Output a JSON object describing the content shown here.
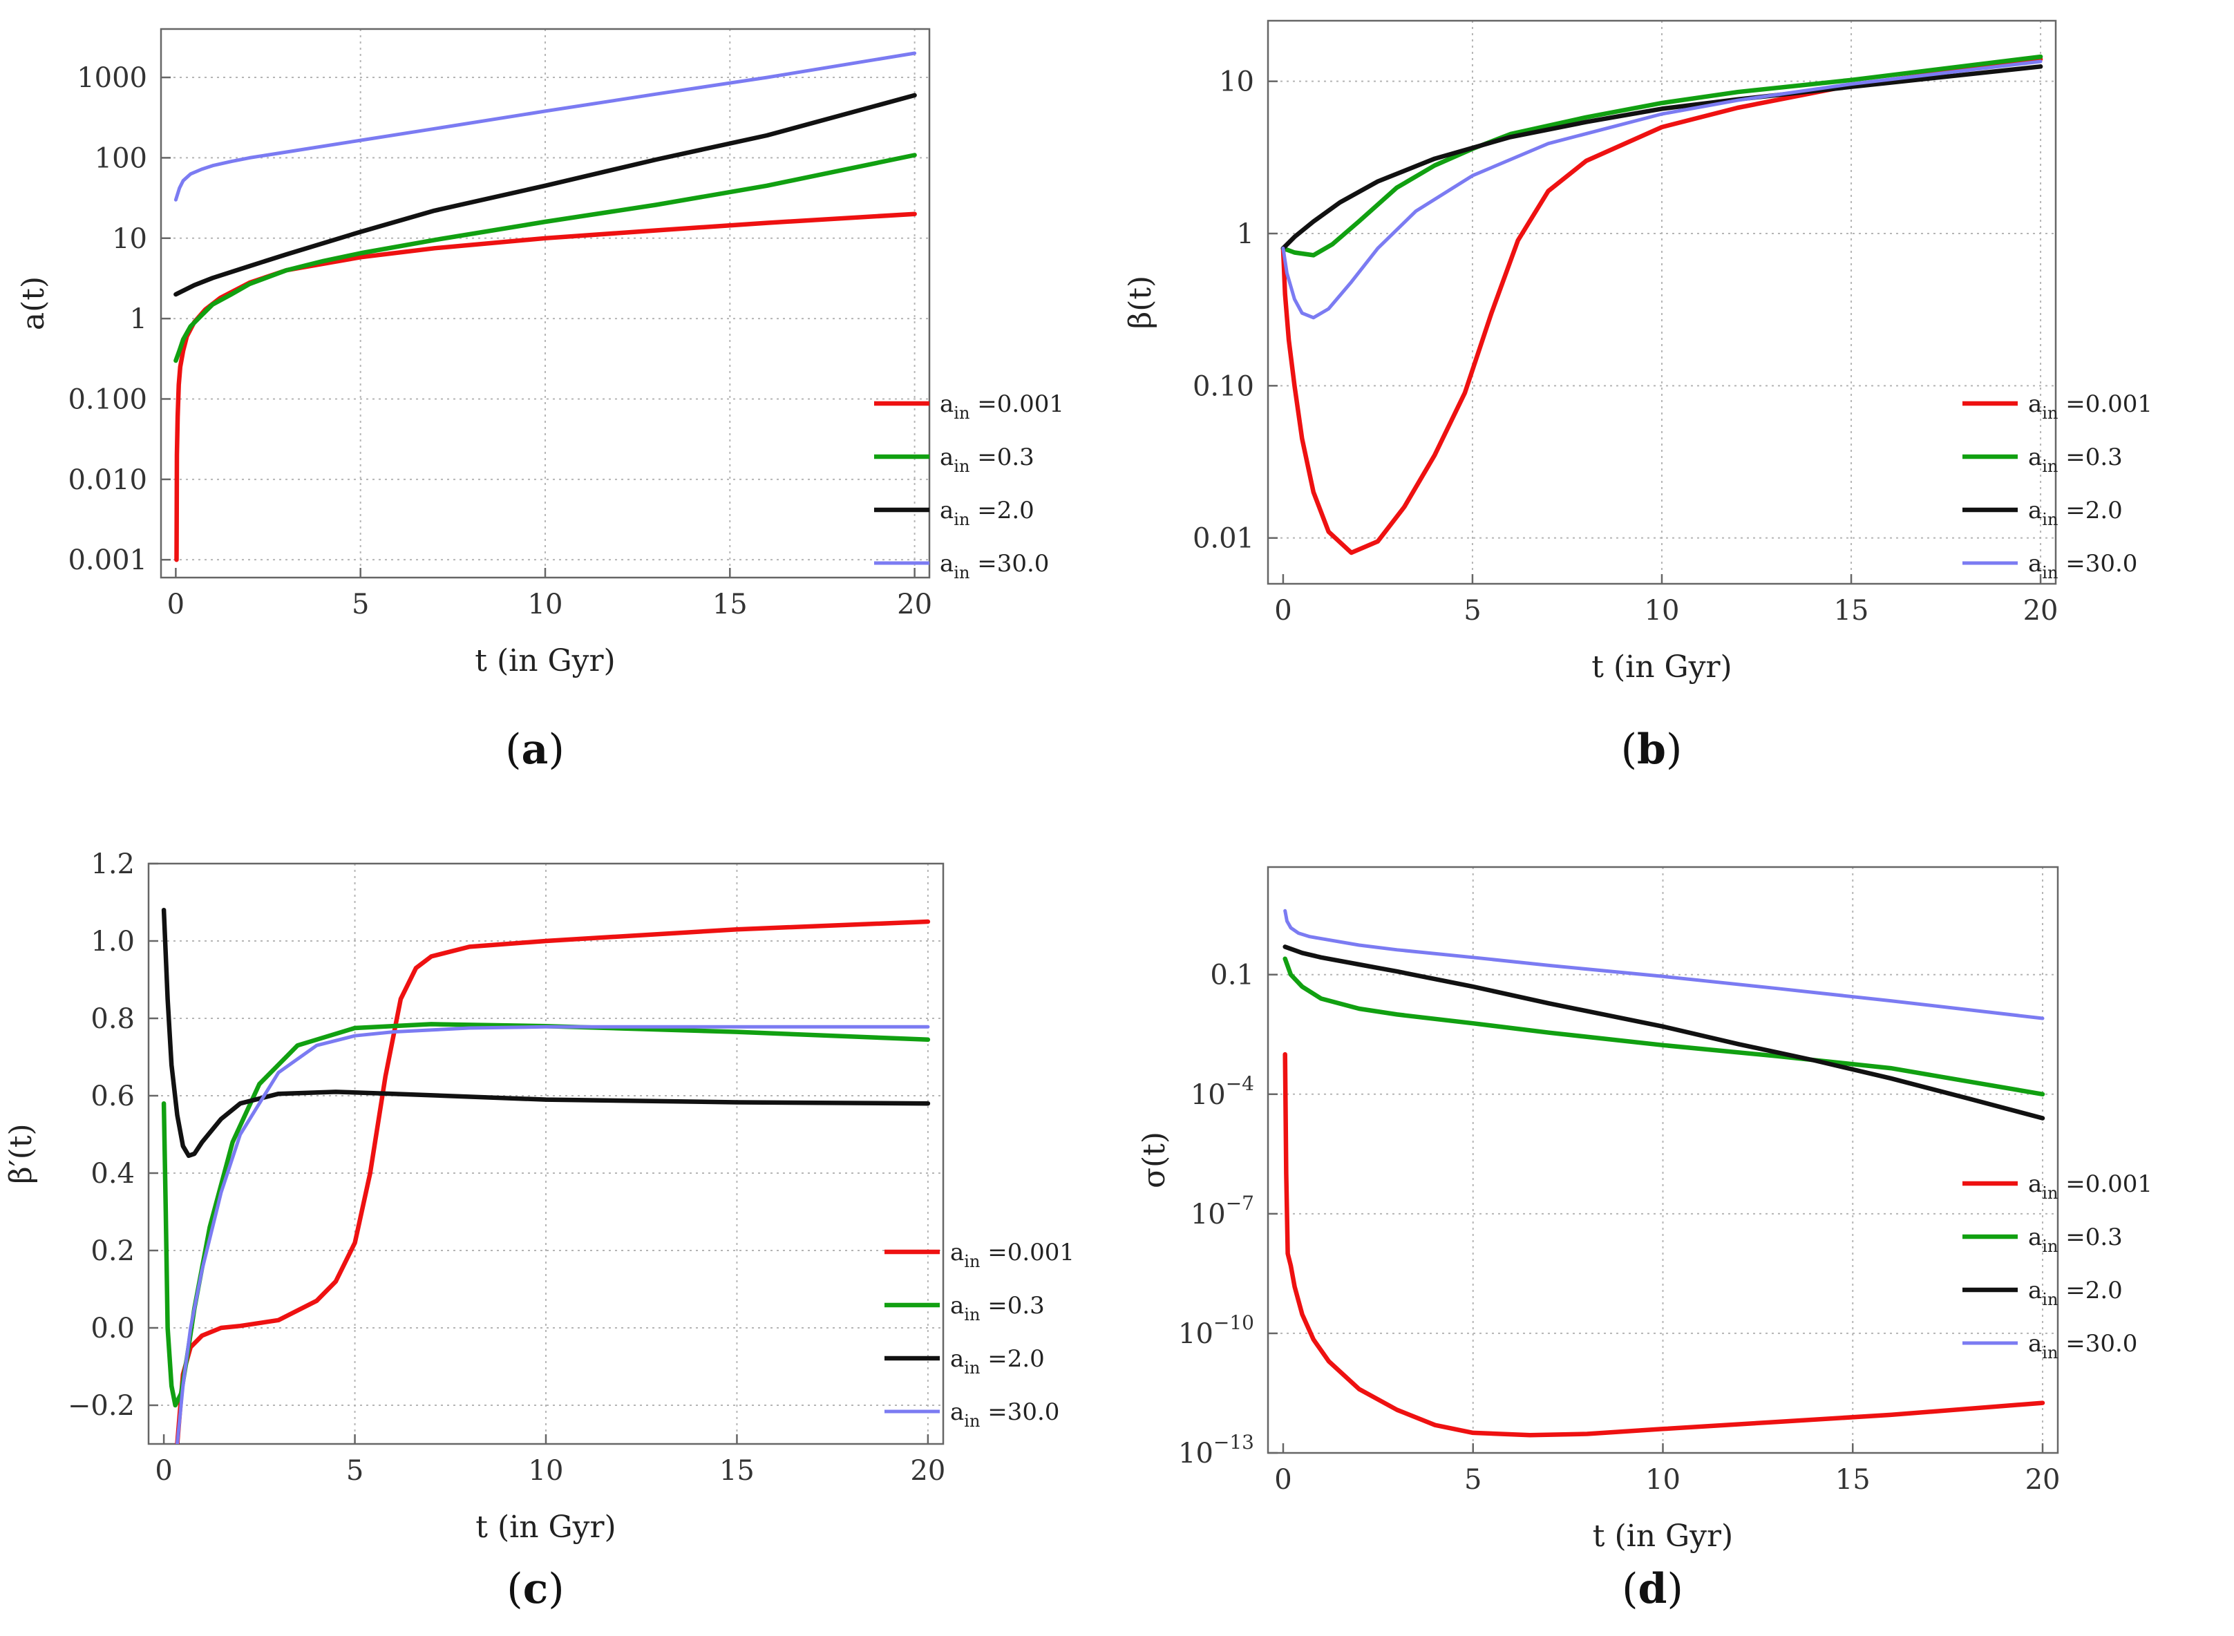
{
  "chart_data": [
    {
      "type": "line",
      "panel_label": "(a)",
      "xlabel": "t (in Gyr)",
      "ylabel": "a(t)",
      "xlim": [
        -0.4,
        20.4
      ],
      "ylim": [
        0.0006,
        4000
      ],
      "yscale": "log",
      "xticks": [
        0,
        5,
        10,
        15,
        20
      ],
      "xtick_labels": [
        "0",
        "5",
        "10",
        "15",
        "20"
      ],
      "yticks": [
        0.001,
        0.01,
        0.1,
        1,
        10,
        100,
        1000
      ],
      "ytick_labels": [
        "0.001",
        "0.010",
        "0.100",
        "1",
        "10",
        "100",
        "1000"
      ],
      "grid": true,
      "legend_position": "center-right",
      "series": [
        {
          "name_main": "a",
          "name_sub": "in",
          "name_rest": " =0.001",
          "color": "#ee1111",
          "x": [
            0.02,
            0.03,
            0.05,
            0.08,
            0.12,
            0.2,
            0.3,
            0.5,
            0.8,
            1.2,
            2,
            3,
            5,
            7,
            10,
            13,
            16,
            20
          ],
          "y": [
            0.001,
            0.02,
            0.06,
            0.15,
            0.25,
            0.4,
            0.6,
            0.9,
            1.3,
            1.8,
            2.8,
            4,
            5.8,
            7.5,
            10,
            12.5,
            15.5,
            20
          ]
        },
        {
          "name_main": "a",
          "name_sub": "in",
          "name_rest": " =0.3",
          "color": "#11a011",
          "x": [
            0,
            0.1,
            0.2,
            0.4,
            0.7,
            1,
            1.5,
            2,
            3,
            4,
            5,
            7,
            10,
            13,
            16,
            20
          ],
          "y": [
            0.3,
            0.4,
            0.55,
            0.8,
            1.1,
            1.5,
            2,
            2.7,
            4,
            5.2,
            6.5,
            9.5,
            16,
            26,
            45,
            108
          ]
        },
        {
          "name_main": "a",
          "name_sub": "in",
          "name_rest": " =2.0",
          "color": "#111111",
          "x": [
            0,
            0.5,
            1,
            2,
            3,
            5,
            7,
            10,
            13,
            16,
            20
          ],
          "y": [
            2,
            2.6,
            3.2,
            4.5,
            6.3,
            12,
            22,
            45,
            95,
            190,
            600
          ]
        },
        {
          "name_main": "a",
          "name_sub": "in",
          "name_rest": " =30.0",
          "color": "#7b7bf2",
          "x": [
            0,
            0.1,
            0.2,
            0.4,
            0.7,
            1,
            1.5,
            2,
            3,
            5,
            7,
            10,
            13,
            16,
            20
          ],
          "y": [
            30,
            42,
            52,
            63,
            72,
            80,
            90,
            100,
            118,
            165,
            230,
            380,
            620,
            1000,
            2000
          ]
        }
      ]
    },
    {
      "type": "line",
      "panel_label": "(b)",
      "xlabel": "t (in Gyr)",
      "ylabel": "β(t)",
      "xlim": [
        -0.4,
        20.4
      ],
      "ylim": [
        0.005,
        25
      ],
      "yscale": "log",
      "xticks": [
        0,
        5,
        10,
        15,
        20
      ],
      "xtick_labels": [
        "0",
        "5",
        "10",
        "15",
        "20"
      ],
      "yticks": [
        0.01,
        0.1,
        1,
        10
      ],
      "ytick_labels": [
        "0.01",
        "0.10",
        "1",
        "10"
      ],
      "grid": true,
      "legend_position": "center-right",
      "series": [
        {
          "name_main": "a",
          "name_sub": "in",
          "name_rest": " =0.001",
          "color": "#ee1111",
          "x": [
            0,
            0.05,
            0.15,
            0.3,
            0.5,
            0.8,
            1.2,
            1.8,
            2.5,
            3.2,
            4,
            4.8,
            5.5,
            6.2,
            7,
            8,
            10,
            12,
            15,
            20
          ],
          "y": [
            0.8,
            0.4,
            0.2,
            0.1,
            0.045,
            0.02,
            0.011,
            0.008,
            0.0095,
            0.016,
            0.035,
            0.09,
            0.3,
            0.9,
            1.9,
            3,
            5,
            6.7,
            9.4,
            14
          ]
        },
        {
          "name_main": "a",
          "name_sub": "in",
          "name_rest": " =0.3",
          "color": "#11a011",
          "x": [
            0,
            0.3,
            0.8,
            1.3,
            2,
            3,
            4,
            5,
            6,
            8,
            10,
            12,
            15,
            20
          ],
          "y": [
            0.8,
            0.75,
            0.72,
            0.85,
            1.2,
            2.0,
            2.8,
            3.6,
            4.5,
            5.8,
            7.2,
            8.5,
            10.2,
            14.5
          ]
        },
        {
          "name_main": "a",
          "name_sub": "in",
          "name_rest": " =2.0",
          "color": "#111111",
          "x": [
            0,
            0.3,
            0.8,
            1.5,
            2.5,
            4,
            6,
            8,
            10,
            12,
            15,
            20
          ],
          "y": [
            0.8,
            0.95,
            1.2,
            1.6,
            2.2,
            3.1,
            4.3,
            5.4,
            6.6,
            7.6,
            9.2,
            12.5
          ]
        },
        {
          "name_main": "a",
          "name_sub": "in",
          "name_rest": " =30.0",
          "color": "#7b7bf2",
          "x": [
            0,
            0.1,
            0.3,
            0.5,
            0.8,
            1.2,
            1.8,
            2.5,
            3.5,
            5,
            7,
            10,
            12,
            15,
            20
          ],
          "y": [
            0.8,
            0.55,
            0.37,
            0.3,
            0.28,
            0.32,
            0.48,
            0.8,
            1.4,
            2.4,
            3.9,
            6.1,
            7.5,
            9.6,
            13.5
          ]
        }
      ]
    },
    {
      "type": "line",
      "panel_label": "(c)",
      "xlabel": "t (in Gyr)",
      "ylabel": "β′(t)",
      "xlim": [
        -0.4,
        20.4
      ],
      "ylim": [
        -0.3,
        1.2
      ],
      "yscale": "linear",
      "xticks": [
        0,
        5,
        10,
        15,
        20
      ],
      "xtick_labels": [
        "0",
        "5",
        "10",
        "15",
        "20"
      ],
      "yticks": [
        -0.2,
        0,
        0.2,
        0.4,
        0.6,
        0.8,
        1.0,
        1.2
      ],
      "ytick_labels": [
        "−0.2",
        "0.0",
        "0.2",
        "0.4",
        "0.6",
        "0.8",
        "1.0",
        "1.2"
      ],
      "grid": true,
      "legend_position": "center-right",
      "series": [
        {
          "name_main": "a",
          "name_sub": "in",
          "name_rest": " =0.001",
          "color": "#ee1111",
          "x": [
            0.35,
            0.5,
            0.7,
            1,
            1.5,
            2,
            3,
            4,
            4.5,
            5,
            5.4,
            5.8,
            6.2,
            6.6,
            7,
            8,
            10,
            15,
            20
          ],
          "y": [
            -0.3,
            -0.12,
            -0.05,
            -0.02,
            0,
            0.005,
            0.02,
            0.07,
            0.12,
            0.22,
            0.4,
            0.65,
            0.85,
            0.93,
            0.96,
            0.985,
            1.0,
            1.03,
            1.05
          ]
        },
        {
          "name_main": "a",
          "name_sub": "in",
          "name_rest": " =0.3",
          "color": "#11a011",
          "x": [
            0,
            0.05,
            0.1,
            0.2,
            0.3,
            0.45,
            0.6,
            0.8,
            1.2,
            1.8,
            2.5,
            3.5,
            5,
            7,
            10,
            15,
            20
          ],
          "y": [
            0.58,
            0.3,
            0.0,
            -0.15,
            -0.2,
            -0.17,
            -0.08,
            0.05,
            0.26,
            0.48,
            0.63,
            0.73,
            0.775,
            0.785,
            0.78,
            0.765,
            0.745
          ]
        },
        {
          "name_main": "a",
          "name_sub": "in",
          "name_rest": " =2.0",
          "color": "#111111",
          "x": [
            0,
            0.1,
            0.2,
            0.35,
            0.5,
            0.65,
            0.8,
            1,
            1.5,
            2,
            3,
            4.5,
            6,
            10,
            15,
            20
          ],
          "y": [
            1.08,
            0.85,
            0.68,
            0.55,
            0.47,
            0.445,
            0.45,
            0.48,
            0.54,
            0.58,
            0.605,
            0.61,
            0.605,
            0.59,
            0.583,
            0.58
          ]
        },
        {
          "name_main": "a",
          "name_sub": "in",
          "name_rest": " =30.0",
          "color": "#7b7bf2",
          "x": [
            0.35,
            0.5,
            0.7,
            1,
            1.5,
            2,
            3,
            4,
            5,
            6,
            8,
            10,
            15,
            20
          ],
          "y": [
            -0.3,
            -0.15,
            0,
            0.15,
            0.35,
            0.5,
            0.66,
            0.73,
            0.755,
            0.765,
            0.775,
            0.778,
            0.778,
            0.778
          ]
        }
      ]
    },
    {
      "type": "line",
      "panel_label": "(d)",
      "xlabel": "t (in Gyr)",
      "ylabel": "σ(t)",
      "xlim": [
        -0.4,
        20.4
      ],
      "ylim": [
        1e-13,
        50
      ],
      "yscale": "log",
      "xticks": [
        0,
        5,
        10,
        15,
        20
      ],
      "xtick_labels": [
        "0",
        "5",
        "10",
        "15",
        "20"
      ],
      "yticks": [
        1e-13,
        1e-10,
        1e-07,
        0.0001,
        0.1
      ],
      "ytick_labels": [
        "10",
        "10",
        "10",
        "10",
        "0.1"
      ],
      "ytick_label_exponents": [
        "−13",
        "−10",
        "−7",
        "−4",
        ""
      ],
      "grid": true,
      "legend_position": "center-right",
      "series": [
        {
          "name_main": "a",
          "name_sub": "in",
          "name_rest": " =0.001",
          "color": "#ee1111",
          "x": [
            0.05,
            0.08,
            0.12,
            0.2,
            0.3,
            0.5,
            0.8,
            1.2,
            2,
            3,
            4,
            5,
            6.5,
            8,
            10,
            13,
            16,
            20
          ],
          "y": [
            0.001,
            1e-06,
            1e-08,
            5e-09,
            1.5e-09,
            3e-10,
            7e-11,
            2e-11,
            4e-12,
            1.2e-12,
            5e-13,
            3.2e-13,
            2.8e-13,
            3e-13,
            4e-13,
            6e-13,
            9e-13,
            1.8e-12
          ]
        },
        {
          "name_main": "a",
          "name_sub": "in",
          "name_rest": " =0.3",
          "color": "#11a011",
          "x": [
            0.05,
            0.2,
            0.5,
            1,
            2,
            3,
            5,
            7,
            10,
            13,
            16,
            20
          ],
          "y": [
            0.25,
            0.1,
            0.05,
            0.025,
            0.014,
            0.01,
            0.006,
            0.0035,
            0.0017,
            0.0009,
            0.00045,
            0.0001
          ]
        },
        {
          "name_main": "a",
          "name_sub": "in",
          "name_rest": " =2.0",
          "color": "#111111",
          "x": [
            0.05,
            0.5,
            1,
            2,
            3,
            5,
            7,
            10,
            12,
            14,
            16,
            18,
            20
          ],
          "y": [
            0.5,
            0.35,
            0.27,
            0.18,
            0.12,
            0.05,
            0.019,
            0.005,
            0.0018,
            0.0007,
            0.00025,
            8e-05,
            2.5e-05
          ]
        },
        {
          "name_main": "a",
          "name_sub": "in",
          "name_rest": " =30.0",
          "color": "#7b7bf2",
          "x": [
            0.05,
            0.1,
            0.2,
            0.4,
            0.7,
            1,
            2,
            3,
            5,
            7,
            10,
            13,
            16,
            20
          ],
          "y": [
            4,
            2.2,
            1.5,
            1.1,
            0.9,
            0.8,
            0.55,
            0.42,
            0.27,
            0.17,
            0.09,
            0.045,
            0.022,
            0.008
          ]
        }
      ]
    }
  ]
}
